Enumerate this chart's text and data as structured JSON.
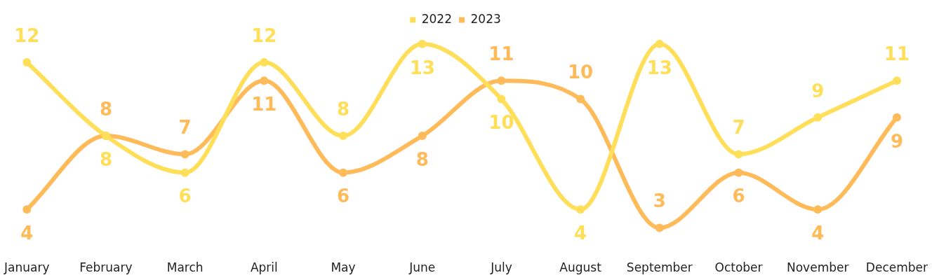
{
  "chart_data": {
    "type": "line",
    "categories": [
      "January",
      "February",
      "March",
      "April",
      "May",
      "June",
      "July",
      "August",
      "September",
      "October",
      "November",
      "December"
    ],
    "series": [
      {
        "name": "2022",
        "color": "#ffdf5a",
        "values": [
          12,
          8,
          6,
          12,
          8,
          13,
          10,
          4,
          13,
          7,
          9,
          11
        ]
      },
      {
        "name": "2023",
        "color": "#ffba5a",
        "values": [
          4,
          8,
          7,
          11,
          6,
          8,
          11,
          10,
          3,
          6,
          4,
          9
        ]
      }
    ],
    "data_labels": true,
    "legend": "top",
    "marker": "circle",
    "line_style": "solid",
    "grid": false
  }
}
